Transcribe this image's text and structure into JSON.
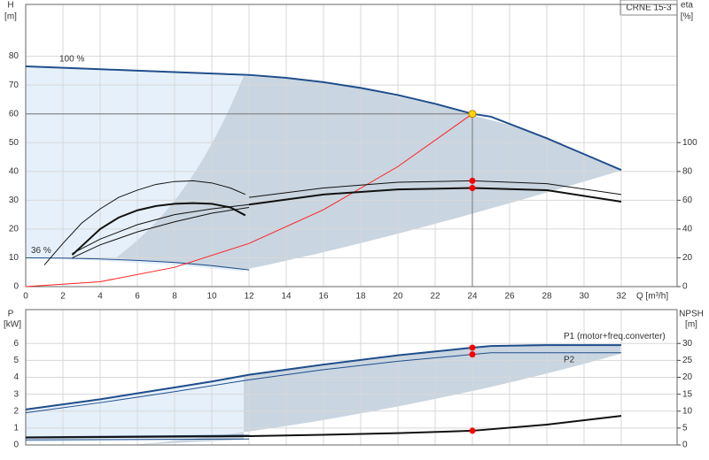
{
  "chart_data": [
    {
      "type": "line",
      "title": "CRNE 15-3",
      "ylabel": "H",
      "yunit": "[m]",
      "y2label": "eta",
      "y2unit": "[%]",
      "xlabel": "Q [m³/h]",
      "xlim": [
        0,
        35
      ],
      "xticks": [
        0,
        2,
        4,
        6,
        8,
        10,
        12,
        14,
        16,
        18,
        20,
        22,
        24,
        26,
        28,
        30,
        32
      ],
      "xtick_labels": true,
      "ylim": [
        0,
        98
      ],
      "yticks": [
        0,
        10,
        20,
        30,
        40,
        50,
        60,
        70,
        80
      ],
      "y2lim": [
        0,
        196
      ],
      "y2ticks": [
        0,
        20,
        40,
        60,
        80,
        100
      ],
      "grid": true,
      "marker_x": 24,
      "operating_point": {
        "x": 24,
        "y": 60,
        "color": "#ffd700"
      },
      "series": [
        {
          "name": "100 %",
          "label_at": "start",
          "color": "#1f4e8c",
          "width": 2,
          "x": [
            0,
            2,
            4,
            6,
            8,
            10,
            12,
            14,
            16,
            18,
            20,
            22,
            24,
            25,
            26,
            28,
            30,
            32
          ],
          "values": [
            76.5,
            76,
            75.5,
            75,
            74.5,
            74,
            73.5,
            72.5,
            71,
            69,
            66.5,
            63.5,
            60,
            59,
            56.5,
            51.5,
            46,
            40.5
          ]
        },
        {
          "name": "36 %",
          "label_at": "start",
          "color": "#1f4e8c",
          "width": 1,
          "x": [
            0,
            2,
            4,
            6,
            8,
            10,
            12
          ],
          "values": [
            10,
            9.9,
            9.6,
            9.1,
            8.4,
            7.3,
            5.8
          ]
        },
        {
          "color": "#ff2020",
          "width": 1,
          "x": [
            0,
            4,
            8,
            12,
            16,
            20,
            24
          ],
          "values": [
            0,
            1.7,
            6.7,
            15,
            26.7,
            41.7,
            60
          ]
        },
        {
          "color": "#111111",
          "width": 1,
          "axis": "y2",
          "marker_color": "#ff0000",
          "x": [
            12,
            16,
            20,
            24,
            28,
            32
          ],
          "values": [
            62,
            68.5,
            72.5,
            73.5,
            71.5,
            64
          ]
        },
        {
          "color": "#111111",
          "width": 2,
          "axis": "y2",
          "marker_color": "#ff0000",
          "x": [
            12,
            16,
            20,
            24,
            28,
            32
          ],
          "values": [
            57,
            64,
            67.5,
            68.5,
            67,
            59
          ]
        },
        {
          "color": "#111111",
          "width": 1,
          "axis": "y2",
          "x": [
            1,
            2,
            3,
            4,
            5,
            6,
            7,
            8,
            9,
            10,
            11,
            11.8
          ],
          "values": [
            15,
            30,
            44,
            54,
            62,
            67,
            71,
            73,
            73.5,
            72,
            68.5,
            64
          ]
        },
        {
          "color": "#111111",
          "width": 2,
          "axis": "y2",
          "x": [
            2.5,
            4,
            5,
            6,
            7,
            8,
            9,
            10,
            11,
            11.8
          ],
          "values": [
            22,
            40,
            48,
            53,
            56,
            57.5,
            58,
            57.5,
            55,
            49.5
          ]
        },
        {
          "color": "#111111",
          "width": 1,
          "axis": "y2",
          "x": [
            2.5,
            4,
            6,
            8,
            10,
            12
          ],
          "values": [
            23,
            33,
            43,
            50,
            54,
            57
          ]
        },
        {
          "color": "#111111",
          "width": 1,
          "axis": "y2",
          "x": [
            2.5,
            4,
            6,
            8,
            10,
            12
          ],
          "values": [
            20,
            29,
            38,
            45,
            51,
            55
          ]
        }
      ]
    },
    {
      "type": "line",
      "ylabel": "P",
      "yunit": "[kW]",
      "y2label": "NPSH",
      "y2unit": "[m]",
      "xlim": [
        0,
        35
      ],
      "xticks": [
        0,
        2,
        4,
        6,
        8,
        10,
        12,
        14,
        16,
        18,
        20,
        22,
        24,
        26,
        28,
        30,
        32
      ],
      "xtick_labels": false,
      "ylim": [
        0,
        8
      ],
      "yticks": [
        0,
        1,
        2,
        3,
        4,
        5,
        6
      ],
      "y2lim": [
        0,
        40
      ],
      "y2ticks": [
        0,
        5,
        10,
        15,
        20,
        25,
        30
      ],
      "grid": true,
      "marker_x": 24,
      "series": [
        {
          "name": "P1 (motor+freq.converter)",
          "label_at": "end",
          "color": "#1f4e8c",
          "width": 2,
          "marker_color": "#ff0000",
          "x": [
            0,
            2,
            4,
            6,
            8,
            10,
            12,
            16,
            20,
            24,
            25,
            28,
            32
          ],
          "values": [
            2.1,
            2.4,
            2.7,
            3.05,
            3.4,
            3.75,
            4.15,
            4.75,
            5.3,
            5.75,
            5.85,
            5.9,
            5.9
          ]
        },
        {
          "name": "P2",
          "label_at": "end",
          "color": "#1f4e8c",
          "width": 1,
          "marker_color": "#ff0000",
          "x": [
            0,
            4,
            8,
            12,
            16,
            20,
            24,
            25,
            32
          ],
          "values": [
            1.9,
            2.5,
            3.15,
            3.85,
            4.45,
            4.95,
            5.35,
            5.45,
            5.45
          ]
        },
        {
          "color": "#1f4e8c",
          "width": 2,
          "x": [
            0,
            12
          ],
          "values": [
            0.45,
            0.55
          ]
        },
        {
          "color": "#1f4e8c",
          "width": 1,
          "x": [
            0,
            12
          ],
          "values": [
            0.3,
            0.35
          ]
        },
        {
          "color": "#111111",
          "width": 2,
          "axis": "y2",
          "marker_color": "#ff0000",
          "x": [
            0,
            12,
            16,
            20,
            24,
            28,
            32
          ],
          "values": [
            2.2,
            2.6,
            3,
            3.5,
            4.2,
            6,
            8.6
          ]
        }
      ]
    }
  ]
}
